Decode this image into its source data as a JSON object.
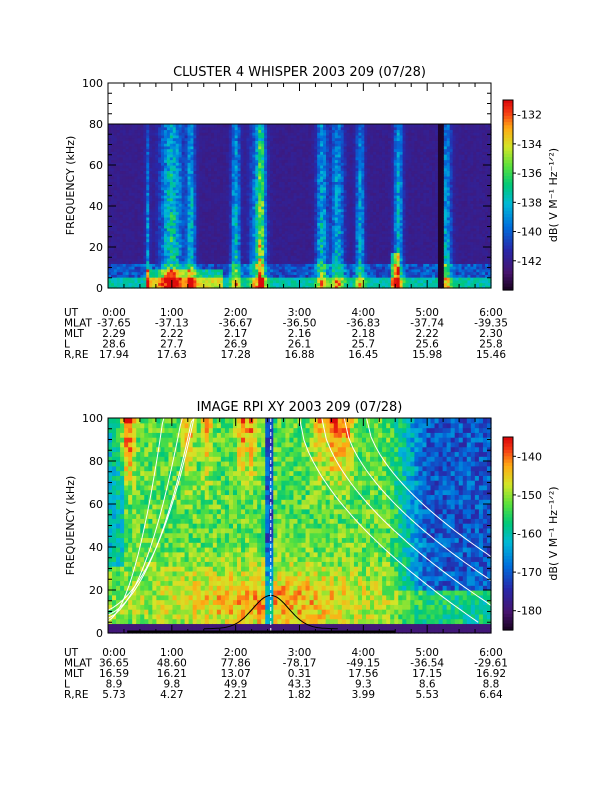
{
  "chart_data": [
    {
      "type": "heatmap",
      "title": "CLUSTER 4 WHISPER 2003 209 (07/28)",
      "ylabel": "FREQUENCY (kHz)",
      "ylim": [
        0,
        100
      ],
      "data_max_y": 80,
      "xlim": [
        0,
        6
      ],
      "y_ticks": [
        "0",
        "20",
        "40",
        "60",
        "80",
        "100"
      ],
      "x_ticks": [
        "0:00",
        "1:00",
        "2:00",
        "3:00",
        "4:00",
        "5:00",
        "6:00"
      ],
      "colorbar": {
        "label": "dB( V M⁻¹ Hz⁻¹ᐟ²)",
        "range": [
          -144,
          -131
        ],
        "ticks": [
          "-132",
          "-134",
          "-136",
          "-138",
          "-140",
          "-142"
        ]
      },
      "ephemeris": {
        "rows": [
          {
            "label": "UT",
            "values": [
              "0:00",
              "1:00",
              "2:00",
              "3:00",
              "4:00",
              "5:00",
              "6:00"
            ]
          },
          {
            "label": "MLAT",
            "values": [
              "-37.65",
              "-37.13",
              "-36.67",
              "-36.50",
              "-36.83",
              "-37.74",
              "-39.35"
            ]
          },
          {
            "label": "MLT",
            "values": [
              "2.29",
              "2.22",
              "2.17",
              "2.16",
              "2.18",
              "2.22",
              "2.30"
            ]
          },
          {
            "label": "L",
            "values": [
              "28.6",
              "27.7",
              "26.9",
              "26.1",
              "25.7",
              "25.6",
              "25.8"
            ]
          },
          {
            "label": "R,RE",
            "values": [
              "17.94",
              "17.63",
              "17.28",
              "16.88",
              "16.45",
              "15.98",
              "15.46"
            ]
          }
        ]
      }
    },
    {
      "type": "heatmap",
      "title": "IMAGE RPI XY 2003 209 (07/28)",
      "ylabel": "FREQUENCY (kHz)",
      "ylim": [
        0,
        100
      ],
      "data_max_y": 100,
      "xlim": [
        0,
        6
      ],
      "y_ticks": [
        "0",
        "20",
        "40",
        "60",
        "80",
        "100"
      ],
      "x_ticks": [
        "0:00",
        "1:00",
        "2:00",
        "3:00",
        "4:00",
        "5:00",
        "6:00"
      ],
      "colorbar": {
        "label": "dB( V M⁻¹ Hz⁻¹ᐟ²)",
        "range": [
          -185,
          -135
        ],
        "ticks": [
          "-140",
          "-150",
          "-160",
          "-170",
          "-180"
        ]
      },
      "ephemeris": {
        "rows": [
          {
            "label": "UT",
            "values": [
              "0:00",
              "1:00",
              "2:00",
              "3:00",
              "4:00",
              "5:00",
              "6:00"
            ]
          },
          {
            "label": "MLAT",
            "values": [
              "36.65",
              "48.60",
              "77.86",
              "-78.17",
              "-49.15",
              "-36.54",
              "-29.61"
            ]
          },
          {
            "label": "MLT",
            "values": [
              "16.59",
              "16.21",
              "13.07",
              "0.31",
              "17.56",
              "17.15",
              "16.92"
            ]
          },
          {
            "label": "L",
            "values": [
              "8.9",
              "9.8",
              "49.9",
              "43.3",
              "9.3",
              "8.6",
              "8.8"
            ]
          },
          {
            "label": "R,RE",
            "values": [
              "5.73",
              "4.27",
              "2.21",
              "1.82",
              "3.99",
              "5.53",
              "6.64"
            ]
          }
        ]
      }
    }
  ]
}
